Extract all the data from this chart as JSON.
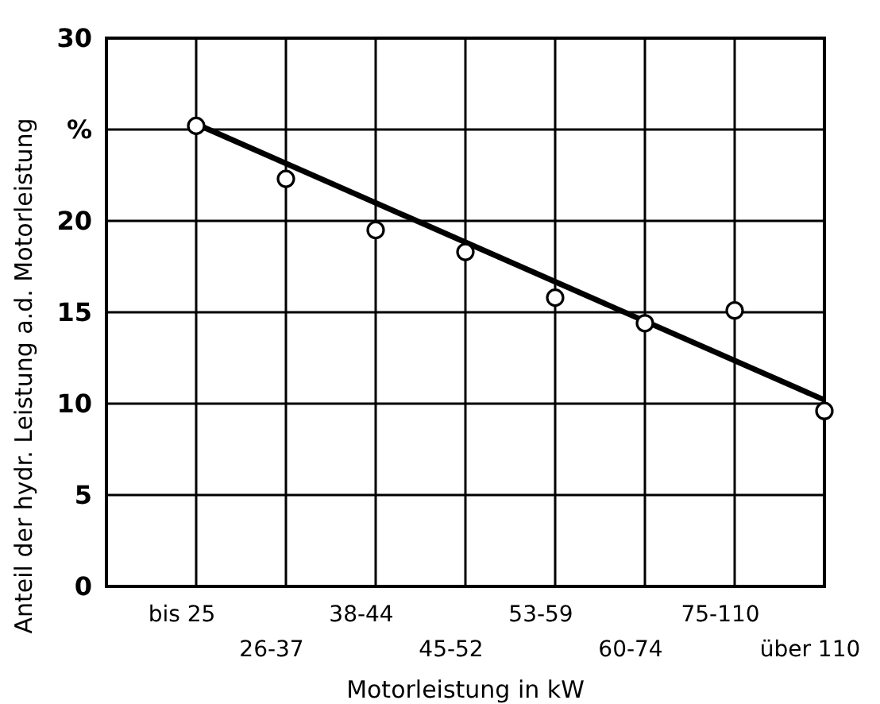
{
  "chart_data": {
    "type": "scatter",
    "xlabel": "Motorleistung in kW",
    "ylabel": "Anteil der hydr. Leistung a.d. Motorleistung",
    "categories": [
      "bis 25",
      "26-37",
      "38-44",
      "45-52",
      "53-59",
      "60-74",
      "75-110",
      "über 110"
    ],
    "ylim": [
      0,
      30
    ],
    "yticks": [
      0,
      5,
      10,
      15,
      20,
      {
        "value": 25,
        "label": "%"
      },
      30
    ],
    "grid": true,
    "series": [
      {
        "color": "#000000",
        "marker": "circle",
        "values": [
          25.2,
          22.3,
          19.5,
          18.3,
          15.8,
          14.4,
          15.1,
          9.6
        ]
      },
      {
        "type": "line",
        "color": "#000000",
        "marker": "none",
        "x": [
          "bis 25",
          "über 110"
        ],
        "values": [
          25.3,
          10.2
        ]
      }
    ]
  }
}
